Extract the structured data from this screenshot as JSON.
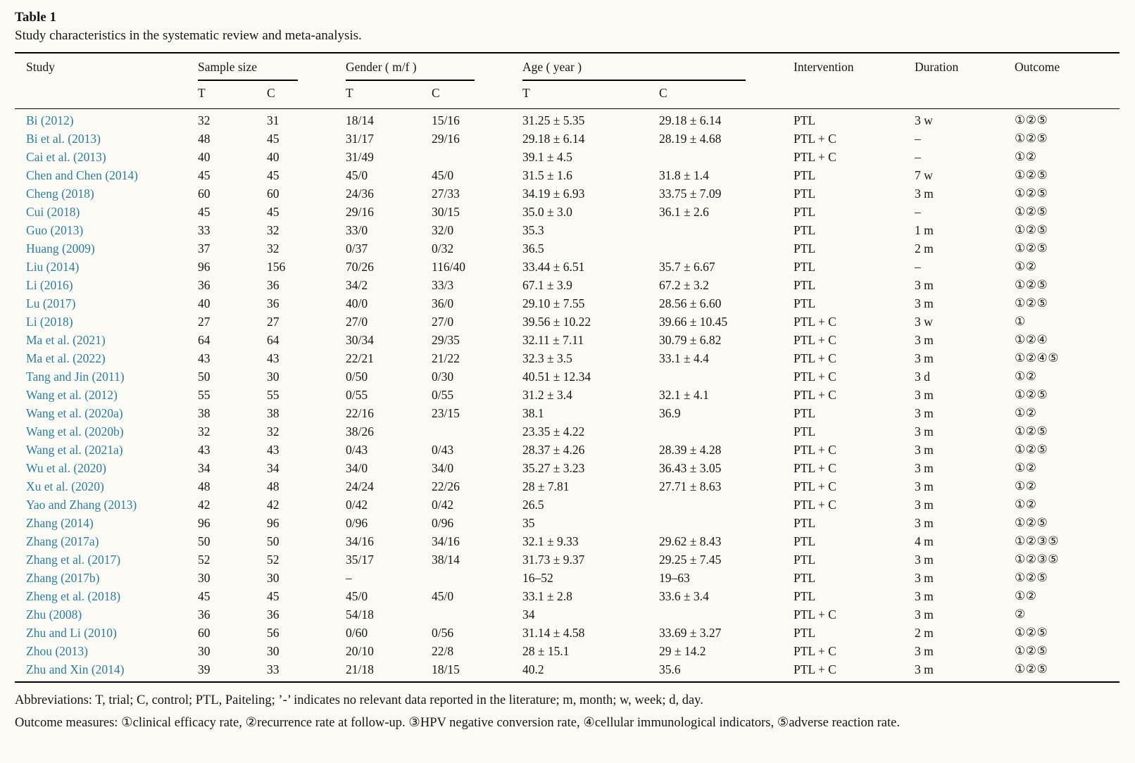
{
  "page": {
    "title": "Table 1",
    "caption": "Study characteristics in the systematic review and meta-analysis."
  },
  "colors": {
    "background": "#fbfaf5",
    "text": "#161616",
    "study_link": "#2d7d9c",
    "rule": "#000000"
  },
  "table": {
    "columns": {
      "study": "Study",
      "sample_size": "Sample size",
      "gender": "Gender ( m/f )",
      "age": "Age ( year )",
      "t": "T",
      "c": "C",
      "intervention": "Intervention",
      "duration": "Duration",
      "outcome": "Outcome"
    },
    "rows": [
      {
        "study": "Bi (2012)",
        "sample_t": "32",
        "sample_c": "31",
        "gender_t": "18/14",
        "gender_c": "15/16",
        "age_t": "31.25 ± 5.35",
        "age_c": "29.18 ± 6.14",
        "intervention": "PTL",
        "duration": "3 w",
        "outcome": "①②⑤"
      },
      {
        "study": "Bi et al. (2013)",
        "sample_t": "48",
        "sample_c": "45",
        "gender_t": "31/17",
        "gender_c": "29/16",
        "age_t": "29.18 ± 6.14",
        "age_c": "28.19 ± 4.68",
        "intervention": "PTL + C",
        "duration": "–",
        "outcome": "①②⑤"
      },
      {
        "study": "Cai et al. (2013)",
        "sample_t": "40",
        "sample_c": "40",
        "gender_t": "31/49",
        "gender_c": "",
        "age_t": "39.1 ± 4.5",
        "age_c": "",
        "intervention": "PTL + C",
        "duration": "–",
        "outcome": "①②"
      },
      {
        "study": "Chen and Chen (2014)",
        "sample_t": "45",
        "sample_c": "45",
        "gender_t": "45/0",
        "gender_c": "45/0",
        "age_t": "31.5 ± 1.6",
        "age_c": "31.8 ± 1.4",
        "intervention": "PTL",
        "duration": "7 w",
        "outcome": "①②⑤"
      },
      {
        "study": "Cheng (2018)",
        "sample_t": "60",
        "sample_c": "60",
        "gender_t": "24/36",
        "gender_c": "27/33",
        "age_t": "34.19 ± 6.93",
        "age_c": "33.75 ± 7.09",
        "intervention": "PTL",
        "duration": "3 m",
        "outcome": "①②⑤"
      },
      {
        "study": "Cui (2018)",
        "sample_t": "45",
        "sample_c": "45",
        "gender_t": "29/16",
        "gender_c": "30/15",
        "age_t": "35.0 ± 3.0",
        "age_c": "36.1 ± 2.6",
        "intervention": "PTL",
        "duration": "–",
        "outcome": "①②⑤"
      },
      {
        "study": "Guo (2013)",
        "sample_t": "33",
        "sample_c": "32",
        "gender_t": "33/0",
        "gender_c": "32/0",
        "age_t": "35.3",
        "age_c": "",
        "intervention": "PTL",
        "duration": "1 m",
        "outcome": "①②⑤"
      },
      {
        "study": "Huang (2009)",
        "sample_t": "37",
        "sample_c": "32",
        "gender_t": "0/37",
        "gender_c": "0/32",
        "age_t": "36.5",
        "age_c": "",
        "intervention": "PTL",
        "duration": "2 m",
        "outcome": "①②⑤"
      },
      {
        "study": "Liu (2014)",
        "sample_t": "96",
        "sample_c": "156",
        "gender_t": "70/26",
        "gender_c": "116/40",
        "age_t": "33.44 ± 6.51",
        "age_c": "35.7 ± 6.67",
        "intervention": "PTL",
        "duration": "–",
        "outcome": "①②"
      },
      {
        "study": "Li (2016)",
        "sample_t": "36",
        "sample_c": "36",
        "gender_t": "34/2",
        "gender_c": "33/3",
        "age_t": "67.1 ± 3.9",
        "age_c": "67.2 ± 3.2",
        "intervention": "PTL",
        "duration": "3 m",
        "outcome": "①②⑤"
      },
      {
        "study": "Lu (2017)",
        "sample_t": "40",
        "sample_c": "36",
        "gender_t": "40/0",
        "gender_c": "36/0",
        "age_t": "29.10 ± 7.55",
        "age_c": "28.56 ± 6.60",
        "intervention": "PTL",
        "duration": "3 m",
        "outcome": "①②⑤"
      },
      {
        "study": "Li (2018)",
        "sample_t": "27",
        "sample_c": "27",
        "gender_t": "27/0",
        "gender_c": "27/0",
        "age_t": "39.56 ± 10.22",
        "age_c": "39.66 ± 10.45",
        "intervention": "PTL + C",
        "duration": "3 w",
        "outcome": "①"
      },
      {
        "study": "Ma et al. (2021)",
        "sample_t": "64",
        "sample_c": "64",
        "gender_t": "30/34",
        "gender_c": "29/35",
        "age_t": "32.11 ± 7.11",
        "age_c": "30.79 ± 6.82",
        "intervention": "PTL + C",
        "duration": "3 m",
        "outcome": "①②④"
      },
      {
        "study": "Ma et al. (2022)",
        "sample_t": "43",
        "sample_c": "43",
        "gender_t": "22/21",
        "gender_c": "21/22",
        "age_t": "32.3 ± 3.5",
        "age_c": "33.1 ± 4.4",
        "intervention": "PTL + C",
        "duration": "3 m",
        "outcome": "①②④⑤"
      },
      {
        "study": "Tang and Jin (2011)",
        "sample_t": "50",
        "sample_c": "30",
        "gender_t": "0/50",
        "gender_c": "0/30",
        "age_t": "40.51 ± 12.34",
        "age_c": "",
        "intervention": "PTL + C",
        "duration": "3 d",
        "outcome": "①②"
      },
      {
        "study": "Wang et al. (2012)",
        "sample_t": "55",
        "sample_c": "55",
        "gender_t": "0/55",
        "gender_c": "0/55",
        "age_t": "31.2 ± 3.4",
        "age_c": "32.1 ± 4.1",
        "intervention": "PTL + C",
        "duration": "3 m",
        "outcome": "①②⑤"
      },
      {
        "study": "Wang et al. (2020a)",
        "sample_t": "38",
        "sample_c": "38",
        "gender_t": "22/16",
        "gender_c": "23/15",
        "age_t": "38.1",
        "age_c": "36.9",
        "intervention": "PTL",
        "duration": "3 m",
        "outcome": "①②"
      },
      {
        "study": "Wang et al. (2020b)",
        "sample_t": "32",
        "sample_c": "32",
        "gender_t": "38/26",
        "gender_c": "",
        "age_t": "23.35 ± 4.22",
        "age_c": "",
        "intervention": "PTL",
        "duration": "3 m",
        "outcome": "①②⑤"
      },
      {
        "study": "Wang et al. (2021a)",
        "sample_t": "43",
        "sample_c": "43",
        "gender_t": "0/43",
        "gender_c": "0/43",
        "age_t": "28.37 ± 4.26",
        "age_c": "28.39 ± 4.28",
        "intervention": "PTL + C",
        "duration": "3 m",
        "outcome": "①②⑤"
      },
      {
        "study": "Wu et al. (2020)",
        "sample_t": "34",
        "sample_c": "34",
        "gender_t": "34/0",
        "gender_c": "34/0",
        "age_t": "35.27 ± 3.23",
        "age_c": "36.43 ± 3.05",
        "intervention": "PTL + C",
        "duration": "3 m",
        "outcome": "①②"
      },
      {
        "study": "Xu et al. (2020)",
        "sample_t": "48",
        "sample_c": "48",
        "gender_t": "24/24",
        "gender_c": "22/26",
        "age_t": "28 ± 7.81",
        "age_c": "27.71 ± 8.63",
        "intervention": "PTL + C",
        "duration": "3 m",
        "outcome": "①②"
      },
      {
        "study": "Yao and Zhang (2013)",
        "sample_t": "42",
        "sample_c": "42",
        "gender_t": "0/42",
        "gender_c": "0/42",
        "age_t": "26.5",
        "age_c": "",
        "intervention": "PTL + C",
        "duration": "3 m",
        "outcome": "①②"
      },
      {
        "study": "Zhang (2014)",
        "sample_t": "96",
        "sample_c": "96",
        "gender_t": "0/96",
        "gender_c": "0/96",
        "age_t": "35",
        "age_c": "",
        "intervention": "PTL",
        "duration": "3 m",
        "outcome": "①②⑤"
      },
      {
        "study": "Zhang (2017a)",
        "sample_t": "50",
        "sample_c": "50",
        "gender_t": "34/16",
        "gender_c": "34/16",
        "age_t": "32.1 ± 9.33",
        "age_c": "29.62 ± 8.43",
        "intervention": "PTL",
        "duration": "4 m",
        "outcome": "①②③⑤"
      },
      {
        "study": "Zhang et al. (2017)",
        "sample_t": "52",
        "sample_c": "52",
        "gender_t": "35/17",
        "gender_c": "38/14",
        "age_t": "31.73 ± 9.37",
        "age_c": "29.25 ± 7.45",
        "intervention": "PTL",
        "duration": "3 m",
        "outcome": "①②③⑤"
      },
      {
        "study": "Zhang (2017b)",
        "sample_t": "30",
        "sample_c": "30",
        "gender_t": "–",
        "gender_c": "",
        "age_t": "16–52",
        "age_c": "19–63",
        "intervention": "PTL",
        "duration": "3 m",
        "outcome": "①②⑤"
      },
      {
        "study": "Zheng et al. (2018)",
        "sample_t": "45",
        "sample_c": "45",
        "gender_t": "45/0",
        "gender_c": "45/0",
        "age_t": "33.1 ± 2.8",
        "age_c": "33.6 ± 3.4",
        "intervention": "PTL",
        "duration": "3 m",
        "outcome": "①②"
      },
      {
        "study": "Zhu (2008)",
        "sample_t": "36",
        "sample_c": "36",
        "gender_t": "54/18",
        "gender_c": "",
        "age_t": "34",
        "age_c": "",
        "intervention": "PTL + C",
        "duration": "3 m",
        "outcome": "②"
      },
      {
        "study": "Zhu and Li (2010)",
        "sample_t": "60",
        "sample_c": "56",
        "gender_t": "0/60",
        "gender_c": "0/56",
        "age_t": "31.14 ± 4.58",
        "age_c": "33.69 ± 3.27",
        "intervention": "PTL",
        "duration": "2 m",
        "outcome": "①②⑤"
      },
      {
        "study": "Zhou (2013)",
        "sample_t": "30",
        "sample_c": "30",
        "gender_t": "20/10",
        "gender_c": "22/8",
        "age_t": "28 ± 15.1",
        "age_c": "29 ± 14.2",
        "intervention": "PTL + C",
        "duration": "3 m",
        "outcome": "①②⑤"
      },
      {
        "study": "Zhu and Xin (2014)",
        "sample_t": "39",
        "sample_c": "33",
        "gender_t": "21/18",
        "gender_c": "18/15",
        "age_t": "40.2",
        "age_c": "35.6",
        "intervention": "PTL + C",
        "duration": "3 m",
        "outcome": "①②⑤"
      }
    ]
  },
  "footnotes": {
    "abbreviations": "Abbreviations: T, trial; C, control; PTL, Paiteling; ’-’ indicates no relevant data reported in the literature; m, month; w, week; d, day.",
    "outcome_measures": "Outcome measures: ①clinical efficacy rate, ②recurrence rate at follow-up. ③HPV negative conversion rate, ④cellular immunological indicators, ⑤adverse reaction rate."
  }
}
